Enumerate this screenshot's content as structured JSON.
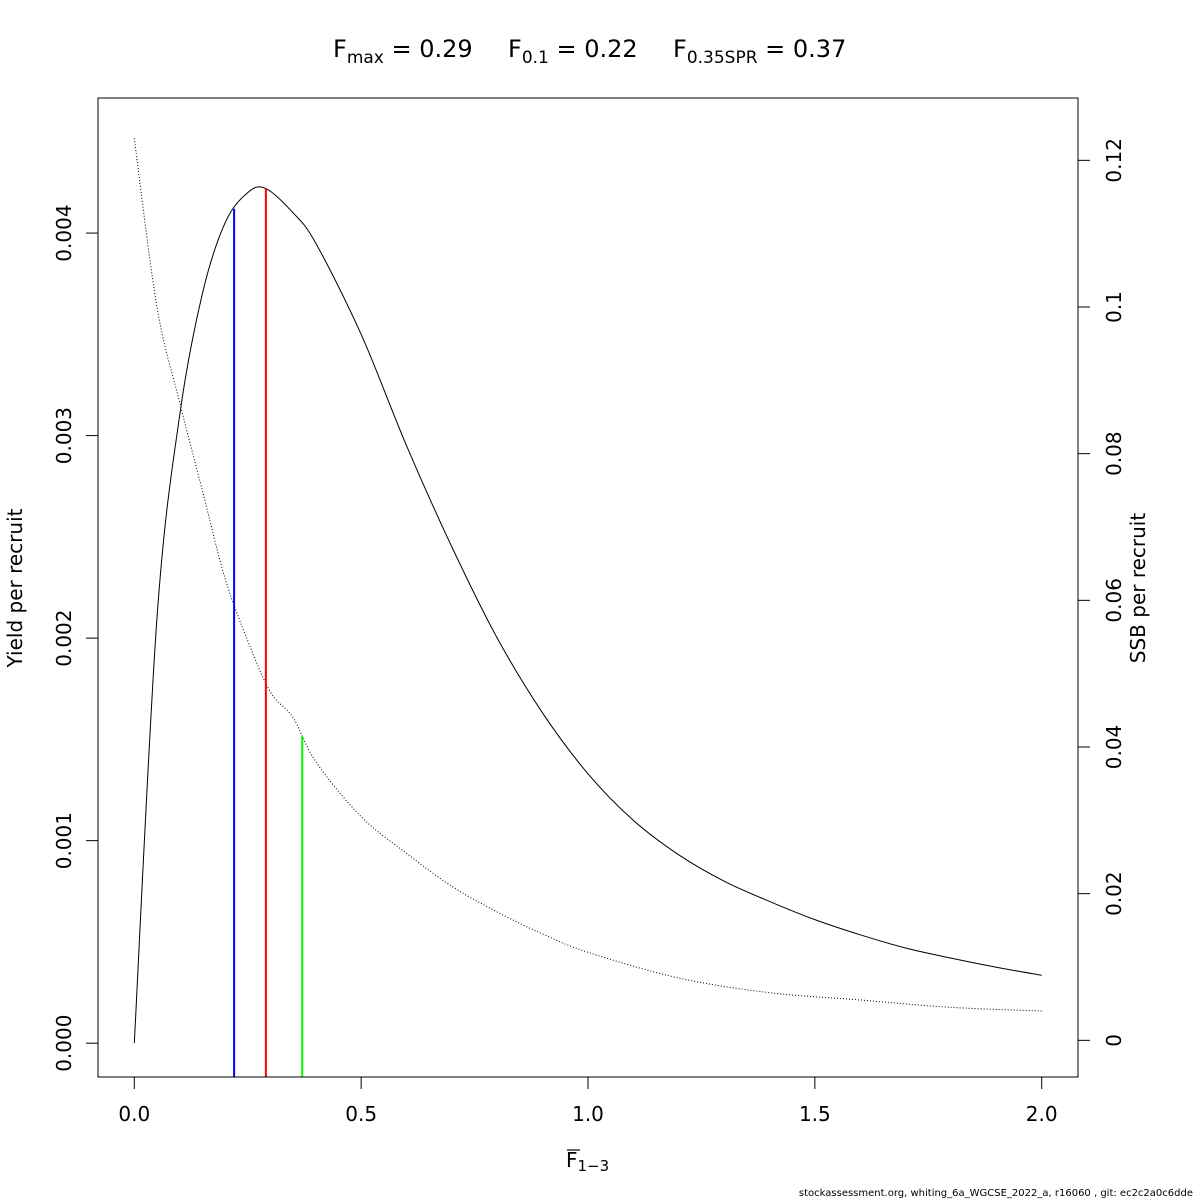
{
  "title": {
    "fmax": {
      "main": "F",
      "sub": "max",
      "value": " = 0.29"
    },
    "f01": {
      "main": "F",
      "sub": "0.1",
      "value": " = 0.22"
    },
    "fspr": {
      "main": "F",
      "sub": "0.35SPR",
      "value": " = 0.37"
    }
  },
  "footer": "stockassessment.org, whiting_6a_WGCSE_2022_a, r16060 , git: ec2c2a0c6dde",
  "chart_data": {
    "type": "line",
    "xlabel": {
      "main": "F",
      "sub": "1−3"
    },
    "ylabel": "Yield per recruit",
    "y2label": "SSB per recruit",
    "xlim": [
      -0.08,
      2.08
    ],
    "ylim": [
      -0.000167,
      0.004667
    ],
    "y2lim": [
      -0.005,
      0.1285
    ],
    "x_ticks": [
      0,
      0.5,
      1,
      1.5,
      2
    ],
    "x_tick_labels": [
      "0.0",
      "0.5",
      "1.0",
      "1.5",
      "2.0"
    ],
    "y_ticks": [
      0,
      0.001,
      0.002,
      0.003,
      0.004
    ],
    "y_tick_labels": [
      "0.000",
      "0.001",
      "0.002",
      "0.003",
      "0.004"
    ],
    "y2_ticks": [
      0,
      0.02,
      0.04,
      0.06,
      0.08,
      0.1,
      0.12
    ],
    "y2_tick_labels": [
      "0",
      "0.02",
      "0.04",
      "0.06",
      "0.08",
      "0.1",
      "0.12"
    ],
    "series": [
      {
        "axis": "left",
        "style": "solid",
        "color": "#000000",
        "x": [
          0,
          0.05,
          0.1,
          0.15,
          0.2,
          0.25,
          0.29,
          0.35,
          0.4,
          0.5,
          0.6,
          0.7,
          0.8,
          0.9,
          1.0,
          1.1,
          1.2,
          1.3,
          1.4,
          1.5,
          1.6,
          1.7,
          1.8,
          1.9,
          2.0
        ],
        "y": [
          0,
          0.0021,
          0.0031,
          0.0037,
          0.00405,
          0.0042,
          0.00422,
          0.0041,
          0.00395,
          0.0035,
          0.00295,
          0.00245,
          0.002,
          0.00163,
          0.00133,
          0.0011,
          0.00093,
          0.0008,
          0.0007,
          0.00061,
          0.000535,
          0.00047,
          0.00042,
          0.000375,
          0.000335
        ]
      },
      {
        "axis": "right",
        "style": "dotted",
        "color": "#000000",
        "x": [
          0,
          0.05,
          0.1,
          0.15,
          0.2,
          0.25,
          0.3,
          0.35,
          0.4,
          0.5,
          0.6,
          0.7,
          0.8,
          0.9,
          1.0,
          1.2,
          1.4,
          1.6,
          1.8,
          2.0
        ],
        "y": [
          0.123,
          0.1,
          0.087,
          0.075,
          0.063,
          0.0545,
          0.0475,
          0.044,
          0.038,
          0.0305,
          0.0255,
          0.021,
          0.0175,
          0.0145,
          0.012,
          0.0085,
          0.0065,
          0.0055,
          0.0045,
          0.004
        ]
      }
    ],
    "reference_lines": [
      {
        "name": "F0.1",
        "x": 0.22,
        "top_axis": "left",
        "top": 0.00412,
        "color": "#0000ff"
      },
      {
        "name": "Fmax",
        "x": 0.29,
        "top_axis": "left",
        "top": 0.00422,
        "color": "#ff0000"
      },
      {
        "name": "F0.35SPR",
        "x": 0.37,
        "top_axis": "right",
        "top": 0.0415,
        "color": "#00ff00"
      }
    ],
    "grid": false,
    "legend": "none"
  }
}
